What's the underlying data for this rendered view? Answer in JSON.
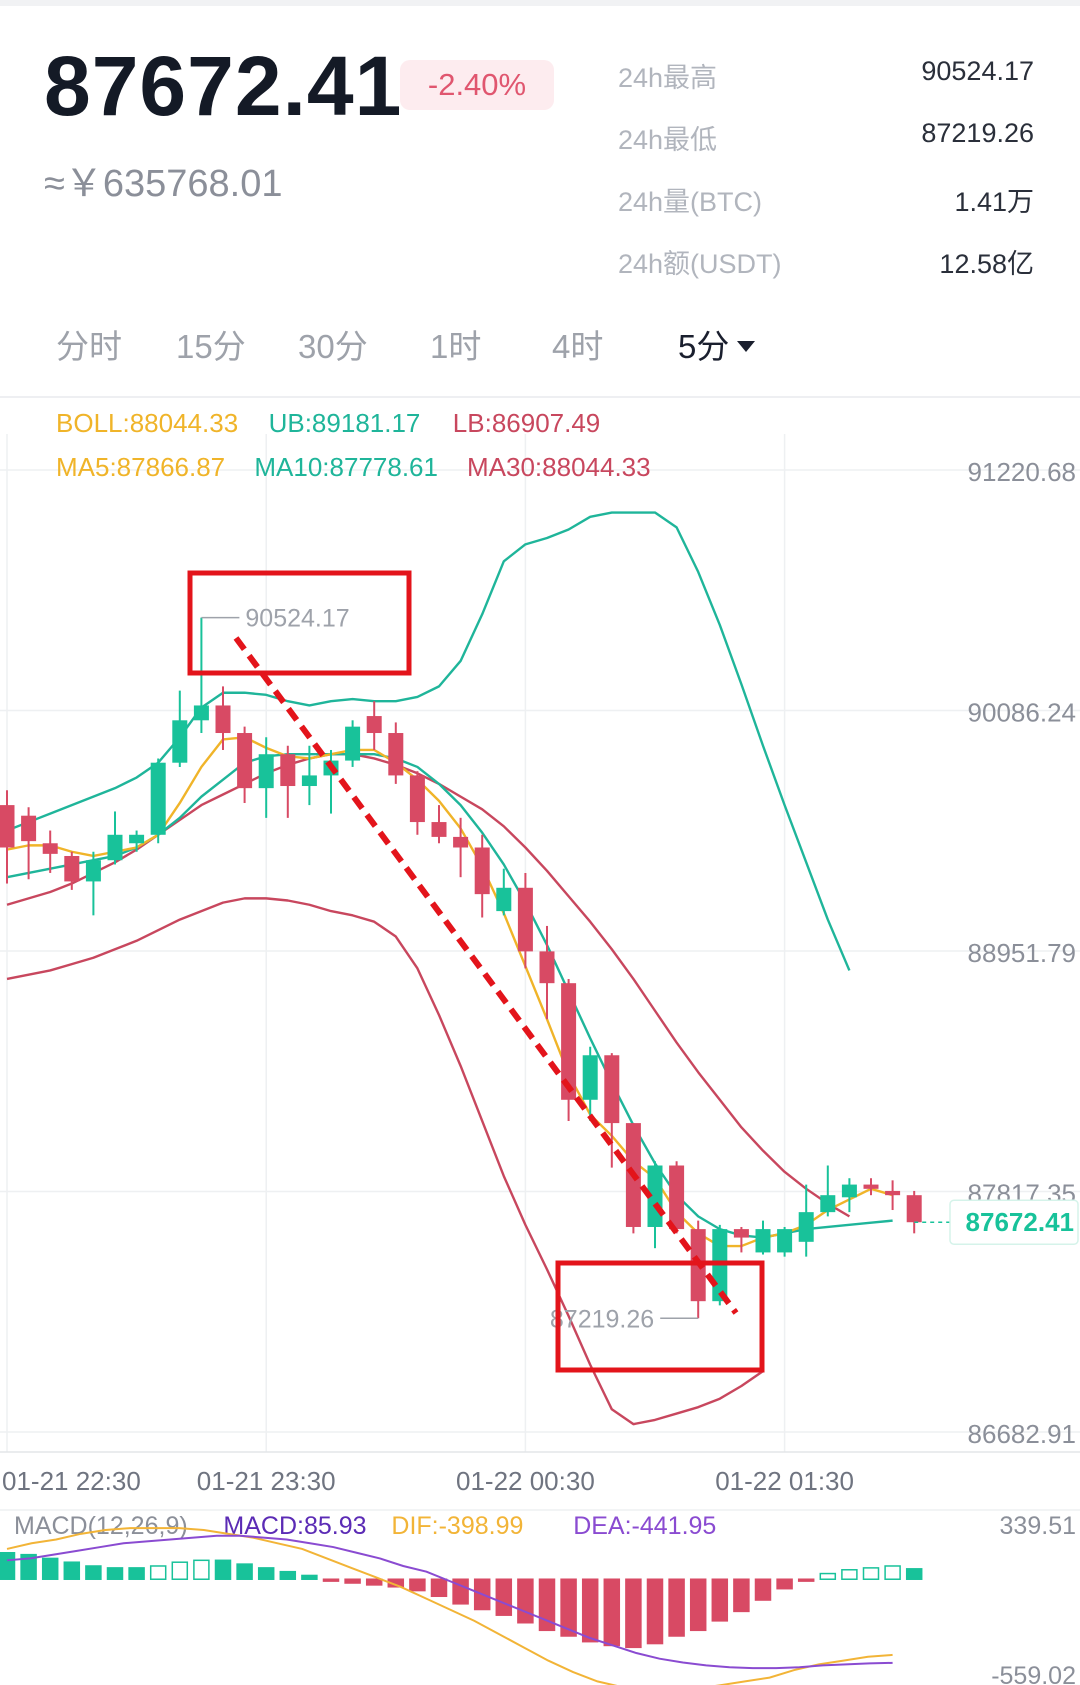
{
  "header": {
    "price": "87672.41",
    "change_pct": "-2.40%",
    "cny_price": "≈￥635768.01"
  },
  "stats": [
    {
      "label": "24h最高",
      "value": "90524.17"
    },
    {
      "label": "24h最低",
      "value": "87219.26"
    },
    {
      "label": "24h量(BTC)",
      "value": "1.41万"
    },
    {
      "label": "24h额(USDT)",
      "value": "12.58亿"
    }
  ],
  "tabs": [
    {
      "label": "分时",
      "active": false
    },
    {
      "label": "15分",
      "active": false
    },
    {
      "label": "30分",
      "active": false
    },
    {
      "label": "1时",
      "active": false
    },
    {
      "label": "4时",
      "active": false
    },
    {
      "label": "5分",
      "active": true
    }
  ],
  "colors": {
    "up": "#18c29a",
    "down": "#d84a64",
    "boll_mid": "#f0b429",
    "boll_upper": "#1fb59a",
    "boll_lower": "#c8475e",
    "annotation": "#e3141b",
    "dif": "#f2b437",
    "dea": "#8a4bd1"
  },
  "chart_data": {
    "type": "candlestick",
    "indicators_row1": [
      {
        "text": "BOLL:88044.33",
        "color": "#f0b429"
      },
      {
        "text": "UB:89181.17",
        "color": "#1fb59a"
      },
      {
        "text": "LB:86907.49",
        "color": "#c8475e"
      }
    ],
    "indicators_row2": [
      {
        "text": "MA5:87866.87",
        "color": "#f0b429"
      },
      {
        "text": "MA10:87778.61",
        "color": "#1fb59a"
      },
      {
        "text": "MA30:88044.33",
        "color": "#c8475e"
      }
    ],
    "y_ticks": [
      "91220.68",
      "90086.24",
      "88951.79",
      "87817.35",
      "86682.91"
    ],
    "y_tick_values": [
      91220.68,
      90086.24,
      88951.79,
      87817.35,
      86682.91
    ],
    "ylim": [
      86682.91,
      91220.68
    ],
    "last_price_label": "87672.41",
    "x_ticks": [
      "01-21 22:30",
      "01-21 23:30",
      "01-22 00:30",
      "01-22 01:30"
    ],
    "x_tick_index": [
      0,
      12,
      24,
      36
    ],
    "high_marker": {
      "label": "90524.17",
      "value": 90524.17,
      "index": 9
    },
    "low_marker": {
      "label": "87219.26",
      "value": 87219.26,
      "index": 32
    },
    "candles": [
      {
        "o": 89640,
        "h": 89710,
        "l": 89270,
        "c": 89440
      },
      {
        "o": 89590,
        "h": 89630,
        "l": 89290,
        "c": 89470
      },
      {
        "o": 89460,
        "h": 89520,
        "l": 89320,
        "c": 89410
      },
      {
        "o": 89400,
        "h": 89420,
        "l": 89240,
        "c": 89280
      },
      {
        "o": 89280,
        "h": 89420,
        "l": 89120,
        "c": 89380
      },
      {
        "o": 89380,
        "h": 89610,
        "l": 89360,
        "c": 89500
      },
      {
        "o": 89460,
        "h": 89520,
        "l": 89420,
        "c": 89500
      },
      {
        "o": 89500,
        "h": 89860,
        "l": 89460,
        "c": 89840
      },
      {
        "o": 89840,
        "h": 90180,
        "l": 89820,
        "c": 90040
      },
      {
        "o": 90040,
        "h": 90524.17,
        "l": 89980,
        "c": 90110
      },
      {
        "o": 90110,
        "h": 90200,
        "l": 89900,
        "c": 89980
      },
      {
        "o": 89980,
        "h": 90010,
        "l": 89650,
        "c": 89720
      },
      {
        "o": 89720,
        "h": 89960,
        "l": 89580,
        "c": 89880
      },
      {
        "o": 89880,
        "h": 89920,
        "l": 89580,
        "c": 89730
      },
      {
        "o": 89730,
        "h": 89920,
        "l": 89640,
        "c": 89780
      },
      {
        "o": 89780,
        "h": 89900,
        "l": 89600,
        "c": 89850
      },
      {
        "o": 89850,
        "h": 90040,
        "l": 89820,
        "c": 90010
      },
      {
        "o": 90060,
        "h": 90130,
        "l": 89900,
        "c": 89980
      },
      {
        "o": 89980,
        "h": 90030,
        "l": 89740,
        "c": 89780
      },
      {
        "o": 89780,
        "h": 89800,
        "l": 89500,
        "c": 89560
      },
      {
        "o": 89560,
        "h": 89640,
        "l": 89460,
        "c": 89490
      },
      {
        "o": 89490,
        "h": 89580,
        "l": 89300,
        "c": 89440
      },
      {
        "o": 89440,
        "h": 89500,
        "l": 89110,
        "c": 89220
      },
      {
        "o": 89140,
        "h": 89340,
        "l": 89120,
        "c": 89250
      },
      {
        "o": 89250,
        "h": 89320,
        "l": 88870,
        "c": 88950
      },
      {
        "o": 88950,
        "h": 89070,
        "l": 88630,
        "c": 88800
      },
      {
        "o": 88800,
        "h": 88820,
        "l": 88150,
        "c": 88250
      },
      {
        "o": 88250,
        "h": 88500,
        "l": 88150,
        "c": 88460
      },
      {
        "o": 88460,
        "h": 88470,
        "l": 87930,
        "c": 88140
      },
      {
        "o": 88140,
        "h": 88140,
        "l": 87620,
        "c": 87650
      },
      {
        "o": 87650,
        "h": 87960,
        "l": 87550,
        "c": 87940
      },
      {
        "o": 87940,
        "h": 87960,
        "l": 87620,
        "c": 87640
      },
      {
        "o": 87640,
        "h": 87680,
        "l": 87219.26,
        "c": 87300
      },
      {
        "o": 87300,
        "h": 87660,
        "l": 87280,
        "c": 87640
      },
      {
        "o": 87640,
        "h": 87650,
        "l": 87530,
        "c": 87600
      },
      {
        "o": 87530,
        "h": 87680,
        "l": 87520,
        "c": 87640
      },
      {
        "o": 87530,
        "h": 87650,
        "l": 87510,
        "c": 87640
      },
      {
        "o": 87580,
        "h": 87850,
        "l": 87510,
        "c": 87720
      },
      {
        "o": 87720,
        "h": 87940,
        "l": 87700,
        "c": 87800
      },
      {
        "o": 87790,
        "h": 87880,
        "l": 87720,
        "c": 87850
      },
      {
        "o": 87850,
        "h": 87880,
        "l": 87800,
        "c": 87830
      },
      {
        "o": 87820,
        "h": 87870,
        "l": 87730,
        "c": 87800
      },
      {
        "o": 87800,
        "h": 87820,
        "l": 87620,
        "c": 87672.41
      }
    ],
    "boll_upper": [
      89520,
      89560,
      89600,
      89640,
      89680,
      89720,
      89770,
      89840,
      89960,
      90100,
      90170,
      90170,
      90160,
      90130,
      90110,
      90130,
      90140,
      90130,
      90130,
      90150,
      90200,
      90320,
      90540,
      90790,
      90870,
      90900,
      90940,
      91000,
      91020,
      91020,
      91020,
      90950,
      90740,
      90490,
      90210,
      89920,
      89640,
      89370,
      89100,
      88860
    ],
    "boll_middle": [
      89170,
      89200,
      89230,
      89270,
      89320,
      89370,
      89430,
      89500,
      89570,
      89640,
      89690,
      89740,
      89790,
      89830,
      89860,
      89880,
      89880,
      89860,
      89830,
      89790,
      89740,
      89680,
      89620,
      89540,
      89440,
      89330,
      89210,
      89090,
      88960,
      88820,
      88670,
      88520,
      88380,
      88250,
      88120,
      88010,
      87910,
      87830,
      87760,
      87700
    ],
    "boll_lower": [
      88820,
      88840,
      88860,
      88890,
      88920,
      88960,
      89000,
      89050,
      89100,
      89140,
      89180,
      89200,
      89200,
      89190,
      89170,
      89140,
      89120,
      89090,
      89020,
      88870,
      88650,
      88410,
      88150,
      87890,
      87660,
      87450,
      87230,
      87000,
      86790,
      86720,
      86740,
      86770,
      86800,
      86840,
      86900,
      86970
    ],
    "ma_fast": [
      89430,
      89450,
      89450,
      89420,
      89400,
      89420,
      89440,
      89500,
      89650,
      89820,
      89950,
      89960,
      89910,
      89870,
      89860,
      89880,
      89900,
      89900,
      89840,
      89760,
      89660,
      89530,
      89350,
      89130,
      88880,
      88630,
      88370,
      88180,
      88080,
      87960,
      87880,
      87720,
      87620,
      87560,
      87560,
      87600,
      87620,
      87660,
      87730,
      87780,
      87830,
      87800
    ],
    "ma_mid": [
      89300,
      89320,
      89340,
      89360,
      89380,
      89400,
      89440,
      89500,
      89580,
      89680,
      89760,
      89840,
      89870,
      89880,
      89880,
      89880,
      89880,
      89880,
      89860,
      89820,
      89740,
      89640,
      89510,
      89360,
      89180,
      88980,
      88760,
      88540,
      88330,
      88130,
      87950,
      87800,
      87700,
      87640,
      87610,
      87600,
      87620,
      87640,
      87650,
      87660,
      87670,
      87680
    ],
    "macd": {
      "labels": [
        {
          "text": "MACD(12,26,9)",
          "color": "#8b8f99"
        },
        {
          "text": "MACD:85.93",
          "color": "#5b2bb5"
        },
        {
          "text": "DIF:-398.99",
          "color": "#f2b437"
        },
        {
          "text": "DEA:-441.95",
          "color": "#8a4bd1"
        }
      ],
      "top_value": "339.51",
      "bottom_value": "-559.02",
      "ylim": [
        -559.02,
        339.51
      ],
      "hist": [
        140,
        130,
        110,
        90,
        70,
        60,
        60,
        70,
        90,
        100,
        100,
        80,
        60,
        40,
        20,
        -10,
        -20,
        -30,
        -40,
        -60,
        -90,
        -130,
        -160,
        -190,
        -230,
        -270,
        -300,
        -330,
        -350,
        -360,
        -340,
        -300,
        -270,
        -220,
        -170,
        -110,
        -50,
        -10,
        30,
        50,
        60,
        70,
        55
      ],
      "dif": [
        160,
        190,
        210,
        240,
        260,
        270,
        270,
        270,
        260,
        240,
        220,
        190,
        160,
        110,
        60,
        10,
        -40,
        -100,
        -160,
        -220,
        -290,
        -360,
        -430,
        -490,
        -540,
        -570,
        -590,
        -590,
        -580,
        -560,
        -540,
        -520,
        -480,
        -450,
        -430,
        -410,
        -400
      ],
      "dea": [
        100,
        110,
        130,
        150,
        170,
        190,
        200,
        210,
        220,
        230,
        230,
        220,
        210,
        190,
        170,
        140,
        110,
        70,
        40,
        -10,
        -60,
        -110,
        -160,
        -210,
        -260,
        -310,
        -350,
        -390,
        -420,
        -440,
        -455,
        -465,
        -470,
        -470,
        -465,
        -455,
        -450,
        -445,
        -442
      ]
    }
  }
}
